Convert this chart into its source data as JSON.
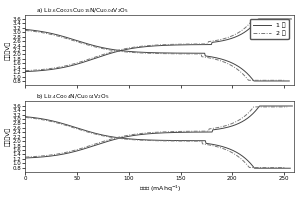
{
  "title_a": "a) Li$_{2.6}$Co$_{0.25}$Cu$_{0.15}$N/Cu$_{0.04}$V$_2$O$_5$",
  "title_b": "b) Li$_{2.4}$Co$_{0.4}$N/Cu$_{0.04}$V$_2$O$_5$",
  "xlabel": "比容量 (mAhq$^{-1}$)",
  "ylabel": "电压（V）",
  "xlim": [
    0,
    260
  ],
  "ylim": [
    0.6,
    3.8
  ],
  "yticks": [
    0.8,
    1.0,
    1.2,
    1.4,
    1.6,
    1.8,
    2.0,
    2.2,
    2.4,
    2.6,
    2.8,
    3.0,
    3.2,
    3.4,
    3.6
  ],
  "xticks": [
    0,
    50,
    100,
    150,
    200,
    250
  ],
  "legend_entries": [
    "1 周",
    "2 周"
  ],
  "background_color": "#ffffff",
  "line_color_solid": "#444444",
  "line_color_dash": "#777777",
  "figsize": [
    3.0,
    2.0
  ],
  "dpi": 100
}
